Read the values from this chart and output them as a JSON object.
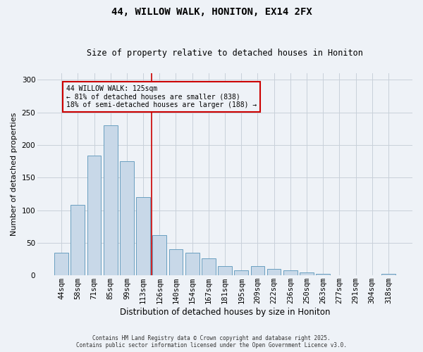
{
  "title": "44, WILLOW WALK, HONITON, EX14 2FX",
  "subtitle": "Size of property relative to detached houses in Honiton",
  "xlabel": "Distribution of detached houses by size in Honiton",
  "ylabel": "Number of detached properties",
  "footer_line1": "Contains HM Land Registry data © Crown copyright and database right 2025.",
  "footer_line2": "Contains public sector information licensed under the Open Government Licence v3.0.",
  "annotation_line1": "44 WILLOW WALK: 125sqm",
  "annotation_line2": "← 81% of detached houses are smaller (838)",
  "annotation_line3": "18% of semi-detached houses are larger (188) →",
  "vline_x": 5.5,
  "categories": [
    "44sqm",
    "58sqm",
    "71sqm",
    "85sqm",
    "99sqm",
    "113sqm",
    "126sqm",
    "140sqm",
    "154sqm",
    "167sqm",
    "181sqm",
    "195sqm",
    "209sqm",
    "222sqm",
    "236sqm",
    "250sqm",
    "263sqm",
    "277sqm",
    "291sqm",
    "304sqm",
    "318sqm"
  ],
  "values": [
    35,
    108,
    184,
    230,
    175,
    120,
    62,
    40,
    35,
    26,
    14,
    8,
    14,
    10,
    8,
    5,
    2,
    0,
    0,
    0,
    2
  ],
  "bar_color": "#c8d8e8",
  "bar_edge_color": "#6a9fc0",
  "vline_color": "#cc0000",
  "annotation_box_edge_color": "#cc0000",
  "background_color": "#eef2f7",
  "ylim": [
    0,
    310
  ],
  "yticks": [
    0,
    50,
    100,
    150,
    200,
    250,
    300
  ],
  "grid_color": "#c8d0da",
  "title_fontsize": 10,
  "subtitle_fontsize": 8.5,
  "ylabel_fontsize": 8,
  "xlabel_fontsize": 8.5,
  "tick_fontsize": 7.5,
  "footer_fontsize": 5.5,
  "ann_fontsize": 7
}
